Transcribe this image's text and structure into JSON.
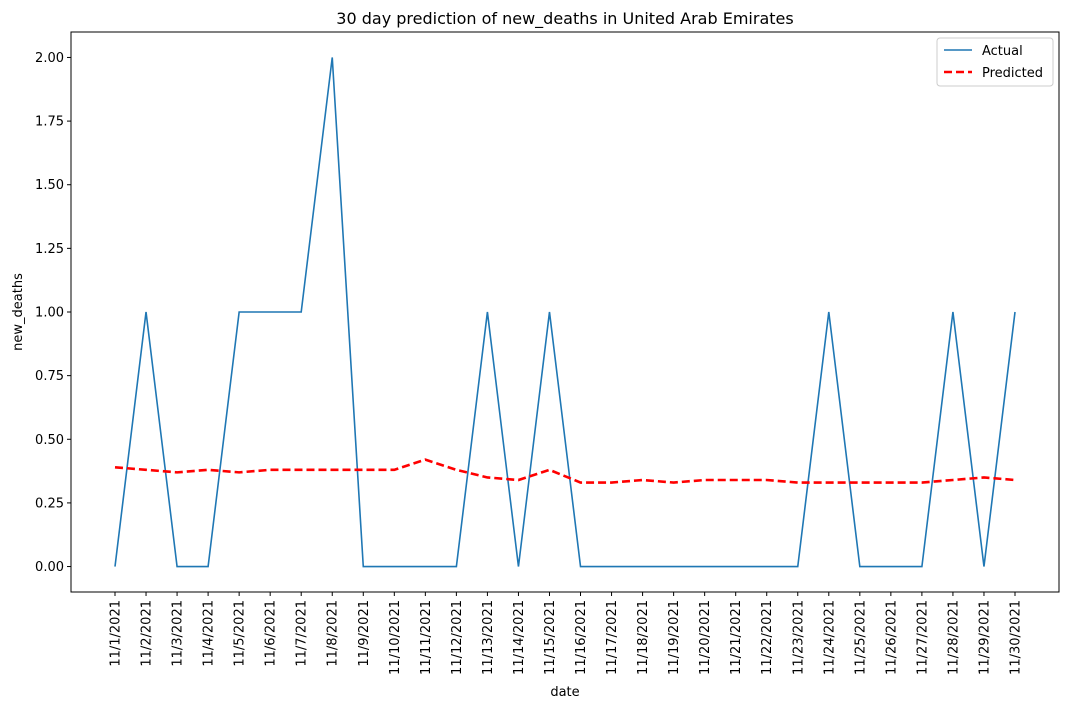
{
  "chart_data": {
    "type": "line",
    "title": "30 day prediction of new_deaths in United Arab Emirates",
    "xlabel": "date",
    "ylabel": "new_deaths",
    "ylim": [
      -0.1,
      2.1
    ],
    "yticks": [
      "0.00",
      "0.25",
      "0.50",
      "0.75",
      "1.00",
      "1.25",
      "1.50",
      "1.75",
      "2.00"
    ],
    "legend_position": "top-right",
    "grid": false,
    "categories": [
      "11/1/2021",
      "11/2/2021",
      "11/3/2021",
      "11/4/2021",
      "11/5/2021",
      "11/6/2021",
      "11/7/2021",
      "11/8/2021",
      "11/9/2021",
      "11/10/2021",
      "11/11/2021",
      "11/12/2021",
      "11/13/2021",
      "11/14/2021",
      "11/15/2021",
      "11/16/2021",
      "11/17/2021",
      "11/18/2021",
      "11/19/2021",
      "11/20/2021",
      "11/21/2021",
      "11/22/2021",
      "11/23/2021",
      "11/24/2021",
      "11/25/2021",
      "11/26/2021",
      "11/27/2021",
      "11/28/2021",
      "11/29/2021",
      "11/30/2021"
    ],
    "series": [
      {
        "name": "Actual",
        "color": "#1f77b4",
        "style": "solid",
        "values": [
          0,
          1,
          0,
          0,
          1,
          1,
          1,
          2,
          0,
          0,
          0,
          0,
          1,
          0,
          1,
          0,
          0,
          0,
          0,
          0,
          0,
          0,
          0,
          1,
          0,
          0,
          0,
          1,
          0,
          1
        ]
      },
      {
        "name": "Predicted",
        "color": "#ff0000",
        "style": "dashed",
        "values": [
          0.39,
          0.38,
          0.37,
          0.38,
          0.37,
          0.38,
          0.38,
          0.38,
          0.38,
          0.38,
          0.42,
          0.38,
          0.35,
          0.34,
          0.38,
          0.33,
          0.33,
          0.34,
          0.33,
          0.34,
          0.34,
          0.34,
          0.33,
          0.33,
          0.33,
          0.33,
          0.33,
          0.34,
          0.35,
          0.34
        ]
      }
    ]
  }
}
